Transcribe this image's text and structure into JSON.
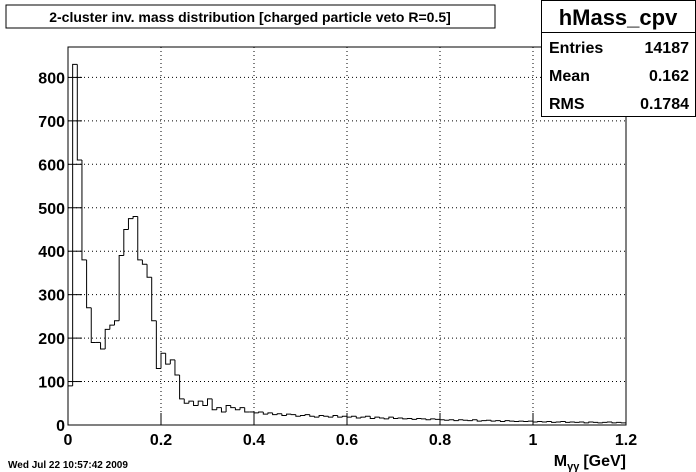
{
  "chart_data": {
    "type": "histogram",
    "title": "2-cluster inv. mass distribution [charged particle veto R=0.5]",
    "x_label": "M",
    "x_label_subscript": "γγ",
    "x_label_unit": "[GeV]",
    "date": "Wed Jul 22 10:57:42 2009",
    "stats": {
      "name": "hMass_cpv",
      "rows": [
        {
          "label": "Entries",
          "value": 14187
        },
        {
          "label": "Mean",
          "value": 0.162
        },
        {
          "label": "RMS",
          "value": 0.1784
        }
      ]
    },
    "color": "#000000",
    "grid": true,
    "xlim": [
      0,
      1.2
    ],
    "ylim": [
      0,
      870
    ],
    "xticks": [
      0,
      0.2,
      0.4,
      0.6,
      0.8,
      1,
      1.2
    ],
    "yticks": [
      0,
      100,
      200,
      300,
      400,
      500,
      600,
      700,
      800
    ],
    "bins": [
      0,
      0.01,
      0.02,
      0.03,
      0.04,
      0.05,
      0.06,
      0.07,
      0.08,
      0.09,
      0.1,
      0.11,
      0.12,
      0.13,
      0.14,
      0.15,
      0.16,
      0.17,
      0.18,
      0.19,
      0.2,
      0.21,
      0.22,
      0.23,
      0.24,
      0.25,
      0.26,
      0.27,
      0.28,
      0.29,
      0.3,
      0.31,
      0.32,
      0.33,
      0.34,
      0.35,
      0.36,
      0.37,
      0.38,
      0.39,
      0.4,
      0.41,
      0.42,
      0.43,
      0.44,
      0.45,
      0.46,
      0.47,
      0.48,
      0.49,
      0.5,
      0.51,
      0.52,
      0.53,
      0.54,
      0.55,
      0.56,
      0.57,
      0.58,
      0.59,
      0.6,
      0.61,
      0.62,
      0.63,
      0.64,
      0.65,
      0.66,
      0.67,
      0.68,
      0.69,
      0.7,
      0.71,
      0.72,
      0.73,
      0.74,
      0.75,
      0.76,
      0.77,
      0.78,
      0.79,
      0.8,
      0.81,
      0.82,
      0.83,
      0.84,
      0.85,
      0.86,
      0.87,
      0.88,
      0.89,
      0.9,
      0.91,
      0.92,
      0.93,
      0.94,
      0.95,
      0.96,
      0.97,
      0.98,
      0.99,
      1,
      1.01,
      1.02,
      1.03,
      1.04,
      1.05,
      1.06,
      1.07,
      1.08,
      1.09,
      1.1,
      1.11,
      1.12,
      1.13,
      1.14,
      1.15,
      1.16,
      1.17,
      1.18,
      1.19,
      1.2
    ],
    "values": [
      90,
      830,
      610,
      380,
      270,
      190,
      190,
      175,
      220,
      230,
      240,
      390,
      450,
      475,
      480,
      380,
      370,
      340,
      240,
      130,
      165,
      140,
      150,
      115,
      60,
      50,
      55,
      45,
      55,
      45,
      60,
      35,
      40,
      30,
      45,
      40,
      35,
      40,
      30,
      30,
      28,
      30,
      25,
      28,
      24,
      26,
      22,
      25,
      24,
      20,
      22,
      24,
      20,
      18,
      22,
      20,
      18,
      22,
      18,
      20,
      18,
      20,
      16,
      18,
      20,
      15,
      18,
      16,
      14,
      18,
      15,
      16,
      14,
      15,
      13,
      15,
      14,
      12,
      14,
      13,
      12,
      11,
      12,
      10,
      12,
      11,
      10,
      12,
      9,
      10,
      11,
      9,
      10,
      8,
      10,
      9,
      8,
      9,
      8,
      9,
      7,
      8,
      7,
      8,
      6,
      7,
      8,
      6,
      7,
      6,
      7,
      5,
      7,
      6,
      5,
      6,
      7,
      5,
      6,
      5
    ]
  }
}
